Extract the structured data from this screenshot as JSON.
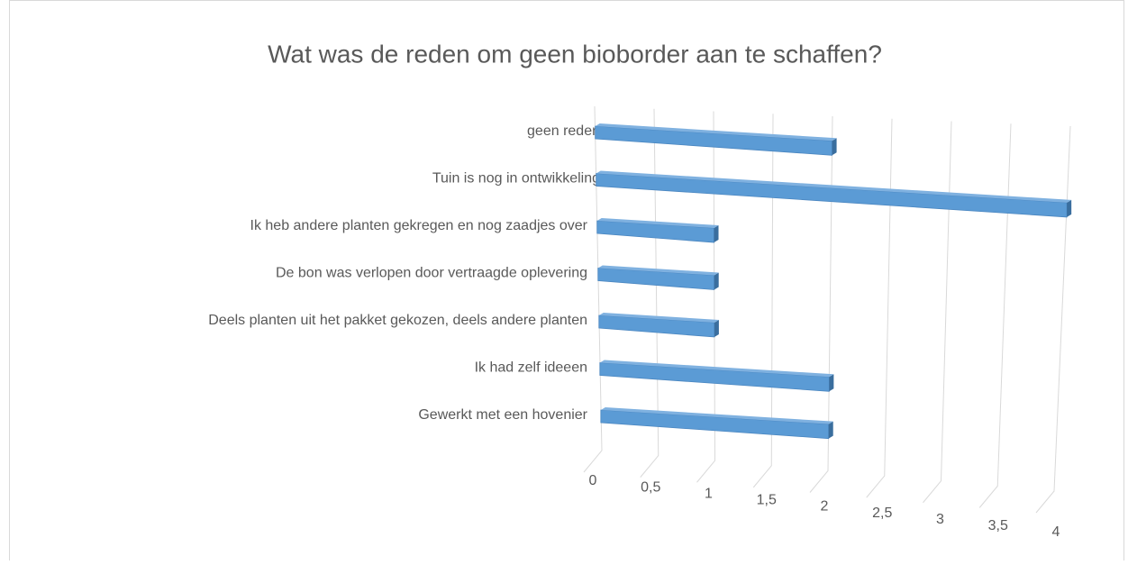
{
  "chart_data": {
    "type": "bar3d",
    "title": "Wat was de reden om geen bioborder aan te schaffen?",
    "categories": [
      "geen reden",
      "Tuin is nog in ontwikkeling",
      "Ik heb andere planten gekregen en nog zaadjes over",
      "De bon was verlopen door vertraagde oplevering",
      "Deels planten uit het pakket gekozen, deels andere planten",
      "Ik had zelf ideeen",
      "Gewerkt met een hovenier"
    ],
    "values": [
      2,
      4,
      1,
      1,
      1,
      2,
      2
    ],
    "color": "#5b9bd5",
    "xlim": [
      0,
      4
    ],
    "xticks": [
      0,
      {
        "value": 0.5,
        "label": "0,5"
      },
      1,
      {
        "value": 1.5,
        "label": "1,5"
      },
      2,
      {
        "value": 2.5,
        "label": "2,5"
      },
      3,
      {
        "value": 3.5,
        "label": "3,5"
      },
      4
    ],
    "grid": true
  }
}
